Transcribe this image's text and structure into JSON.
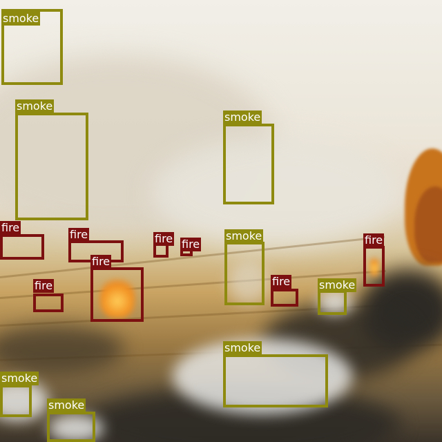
{
  "colors": {
    "smoke_box": "#8e8a10",
    "fire_box": "#7c0f10"
  },
  "detections": [
    {
      "label": "smoke",
      "class": "smoke"
    },
    {
      "label": "smoke",
      "class": "smoke"
    },
    {
      "label": "smoke",
      "class": "smoke"
    },
    {
      "label": "fire",
      "class": "fire"
    },
    {
      "label": "fire",
      "class": "fire"
    },
    {
      "label": "fire",
      "class": "fire"
    },
    {
      "label": "fire",
      "class": "fire"
    },
    {
      "label": "fire",
      "class": "fire"
    },
    {
      "label": "smoke",
      "class": "smoke"
    },
    {
      "label": "fire",
      "class": "fire"
    },
    {
      "label": "fire",
      "class": "fire"
    },
    {
      "label": "fire",
      "class": "fire"
    },
    {
      "label": "smoke",
      "class": "smoke"
    },
    {
      "label": "smoke",
      "class": "smoke"
    },
    {
      "label": "smoke",
      "class": "smoke"
    },
    {
      "label": "smoke",
      "class": "smoke"
    }
  ]
}
